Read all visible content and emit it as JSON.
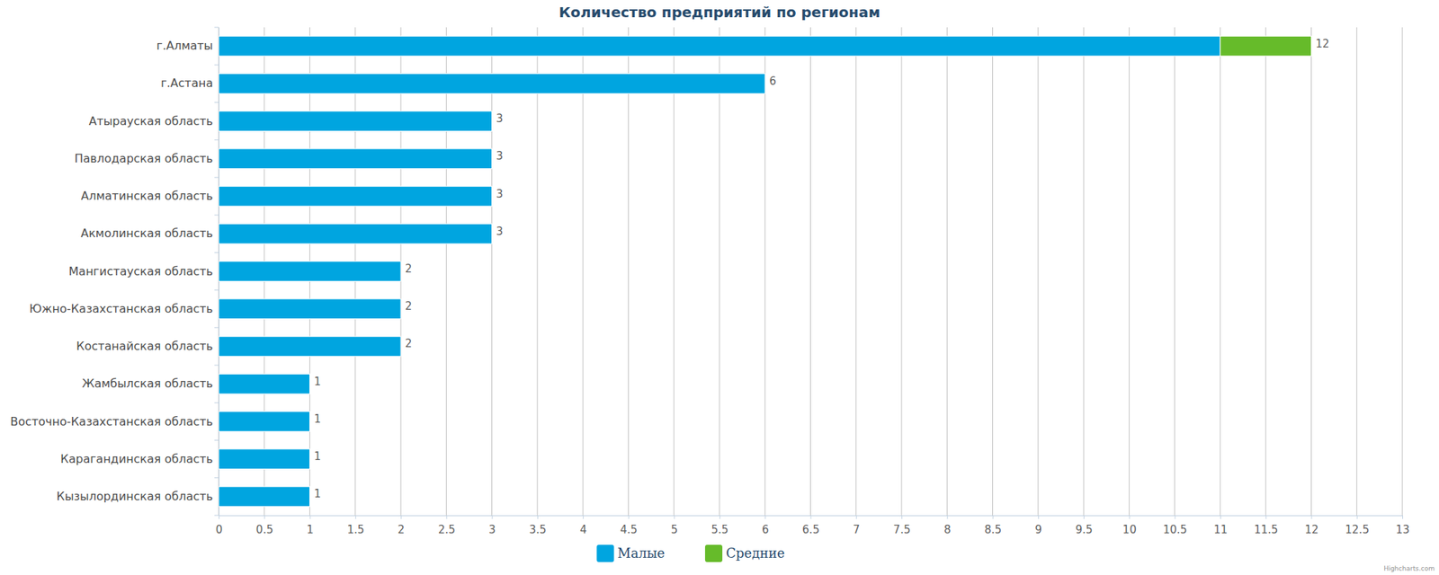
{
  "chart_data": {
    "type": "bar",
    "orientation": "horizontal",
    "stacked": true,
    "title": "Количество предприятий по регионам",
    "categories": [
      "г.Алматы",
      "г.Астана",
      "Атырауская область",
      "Павлодарская область",
      "Алматинская область",
      "Акмолинская область",
      "Мангистауская область",
      "Южно-Казахстанская область",
      "Костанайская область",
      "Жамбылская область",
      "Восточно-Казахстанская область",
      "Карагандинская область",
      "Кызылординская область"
    ],
    "series": [
      {
        "name": "Малые",
        "color": "#00a5e0",
        "values": [
          11,
          6,
          3,
          3,
          3,
          3,
          2,
          2,
          2,
          1,
          1,
          1,
          1
        ]
      },
      {
        "name": "Средние",
        "color": "#66bb2a",
        "values": [
          1,
          0,
          0,
          0,
          0,
          0,
          0,
          0,
          0,
          0,
          0,
          0,
          0
        ]
      }
    ],
    "totals": [
      12,
      6,
      3,
      3,
      3,
      3,
      2,
      2,
      2,
      1,
      1,
      1,
      1
    ],
    "xlim": [
      0,
      13
    ],
    "xticks": [
      0,
      0.5,
      1,
      1.5,
      2,
      2.5,
      3,
      3.5,
      4,
      4.5,
      5,
      5.5,
      6,
      6.5,
      7,
      7.5,
      8,
      8.5,
      9,
      9.5,
      10,
      10.5,
      11,
      11.5,
      12,
      12.5,
      13
    ],
    "grid": true,
    "legend": "bottom",
    "credits": "Highcharts.com"
  }
}
